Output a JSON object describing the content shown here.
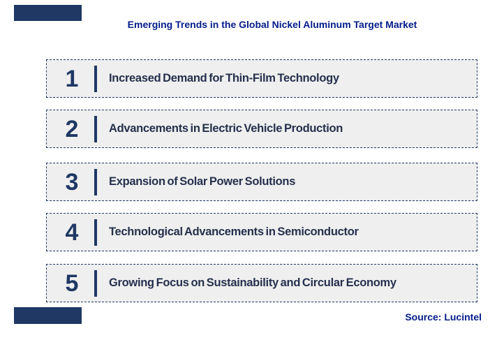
{
  "title": {
    "text": "Emerging Trends in the Global Nickel Aluminum Target Market"
  },
  "trends": [
    {
      "rank": "1",
      "label": "Increased Demand for Thin-Film Technology"
    },
    {
      "rank": "2",
      "label": "Advancements in Electric Vehicle Production"
    },
    {
      "rank": "3",
      "label": "Expansion of Solar Power Solutions"
    },
    {
      "rank": "4",
      "label": "Technological Advancements in Semiconductor"
    },
    {
      "rank": "5",
      "label": "Growing Focus on Sustainability and Circular Economy"
    }
  ],
  "source": {
    "text": "Source: Lucintel"
  },
  "colors": {
    "title_blue": "#021B8A",
    "navy_accent": "#1F3864",
    "row_fill": "#EFEFEF",
    "row_border": "#1F3864",
    "label_text": "#26304D",
    "background": "#FFFFFF"
  }
}
